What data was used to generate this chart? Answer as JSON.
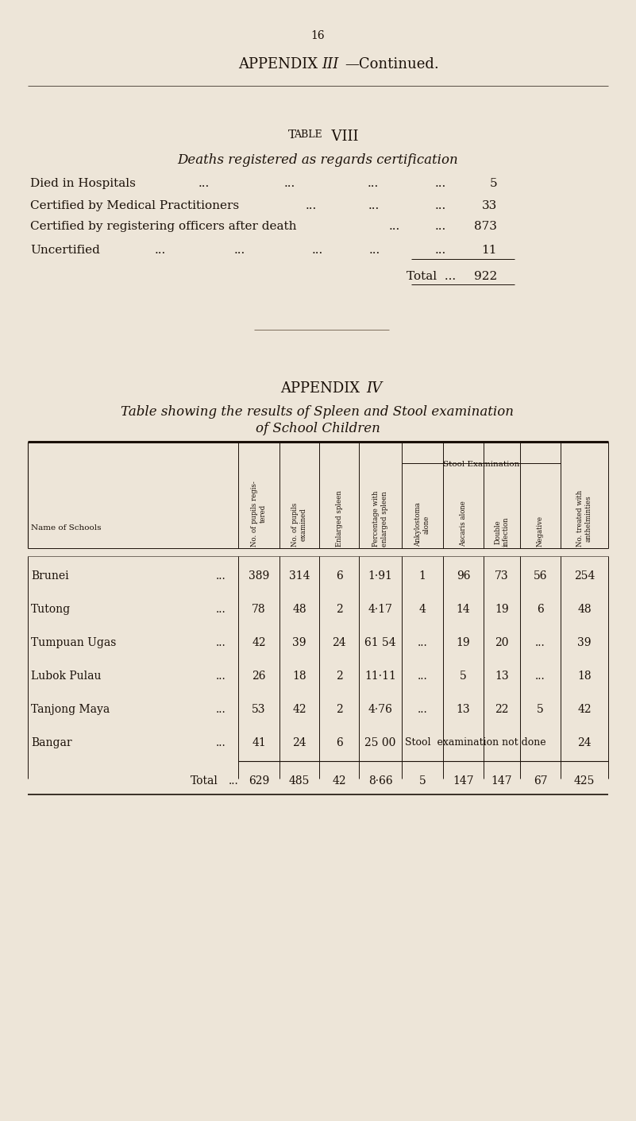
{
  "bg_color": "#EDE5D8",
  "text_color": "#1a1008",
  "page_number": "16",
  "appendix3_title_normal": "APPENDIX  ",
  "appendix3_title_italic": "III",
  "appendix3_title_end": "—Continued.",
  "table8_title": "Table  VIII",
  "table8_subtitle": "Deaths registered as regards certification",
  "table8_rows": [
    {
      "label": "Died in Hospitals",
      "dots1": "...",
      "dots2": "...",
      "dots3": "...",
      "dots4": "...",
      "value": "5"
    },
    {
      "label": "Certified by Medical Practitioners",
      "dots1": "...",
      "dots2": "...",
      "dots3": "...",
      "dots4": "",
      "value": "33"
    },
    {
      "label": "Certified by registering officers after death",
      "dots1": "...",
      "dots2": "...",
      "dots3": "",
      "dots4": "",
      "value": "873"
    },
    {
      "label": "Uncertified",
      "dots1": "...",
      "dots2": "...",
      "dots3": "...",
      "dots4": "...",
      "dots5": "...",
      "value": "11"
    }
  ],
  "table8_total_label": "Total  ...",
  "table8_total_value": "922",
  "appendix4_title_normal": "APPENDIX  ",
  "appendix4_title_italic": "IV",
  "appendix4_subtitle1": "Table showing the results of Spleen and Stool examination",
  "appendix4_subtitle2": "of School Children",
  "stool_exam_label": "Stool Examination",
  "name_of_schools_label": "Name of Schools",
  "col_headers": [
    "No. of pupils regis-\ntered",
    "No. of pupils\nexamined",
    "Enlarged spleen",
    "Percentage with\nenlarged spleen",
    "Ankylostoma\nalone",
    "Ascaris alone",
    "Double\ninfection",
    "Negative",
    "No. treated with\nanthelminties"
  ],
  "school_data": [
    {
      "name": "Brunei",
      "registered": "389",
      "examined": "314",
      "enlarged": "6",
      "pct": "1·91",
      "ankyl": "1",
      "ascaris": "96",
      "double": "73",
      "negative": "56",
      "treated": "254"
    },
    {
      "name": "Tutong",
      "registered": "78",
      "examined": "48",
      "enlarged": "2",
      "pct": "4·17",
      "ankyl": "4",
      "ascaris": "14",
      "double": "19",
      "negative": "6",
      "treated": "48"
    },
    {
      "name": "Tumpuan Ugas",
      "registered": "42",
      "examined": "39",
      "enlarged": "24",
      "pct": "61 54",
      "ankyl": "...",
      "ascaris": "19",
      "double": "20",
      "negative": "...",
      "treated": "39"
    },
    {
      "name": "Lubok Pulau",
      "registered": "26",
      "examined": "18",
      "enlarged": "2",
      "pct": "11·11",
      "ankyl": "...",
      "ascaris": "5",
      "double": "13",
      "negative": "...",
      "treated": "18"
    },
    {
      "name": "Tanjong Maya",
      "registered": "53",
      "examined": "42",
      "enlarged": "2",
      "pct": "4·76",
      "ankyl": "...",
      "ascaris": "13",
      "double": "22",
      "negative": "5",
      "treated": "42"
    },
    {
      "name": "Bangar",
      "registered": "41",
      "examined": "24",
      "enlarged": "6",
      "pct": "25 00",
      "ankyl": "Stool",
      "ascaris": "examin",
      "double": "ation n",
      "negative": "ot done",
      "treated": "24",
      "bangar_special": true
    }
  ],
  "total_row": {
    "registered": "629",
    "examined": "485",
    "enlarged": "42",
    "pct": "8·66",
    "ankyl": "5",
    "ascaris": "147",
    "double": "147",
    "negative": "67",
    "treated": "425"
  }
}
